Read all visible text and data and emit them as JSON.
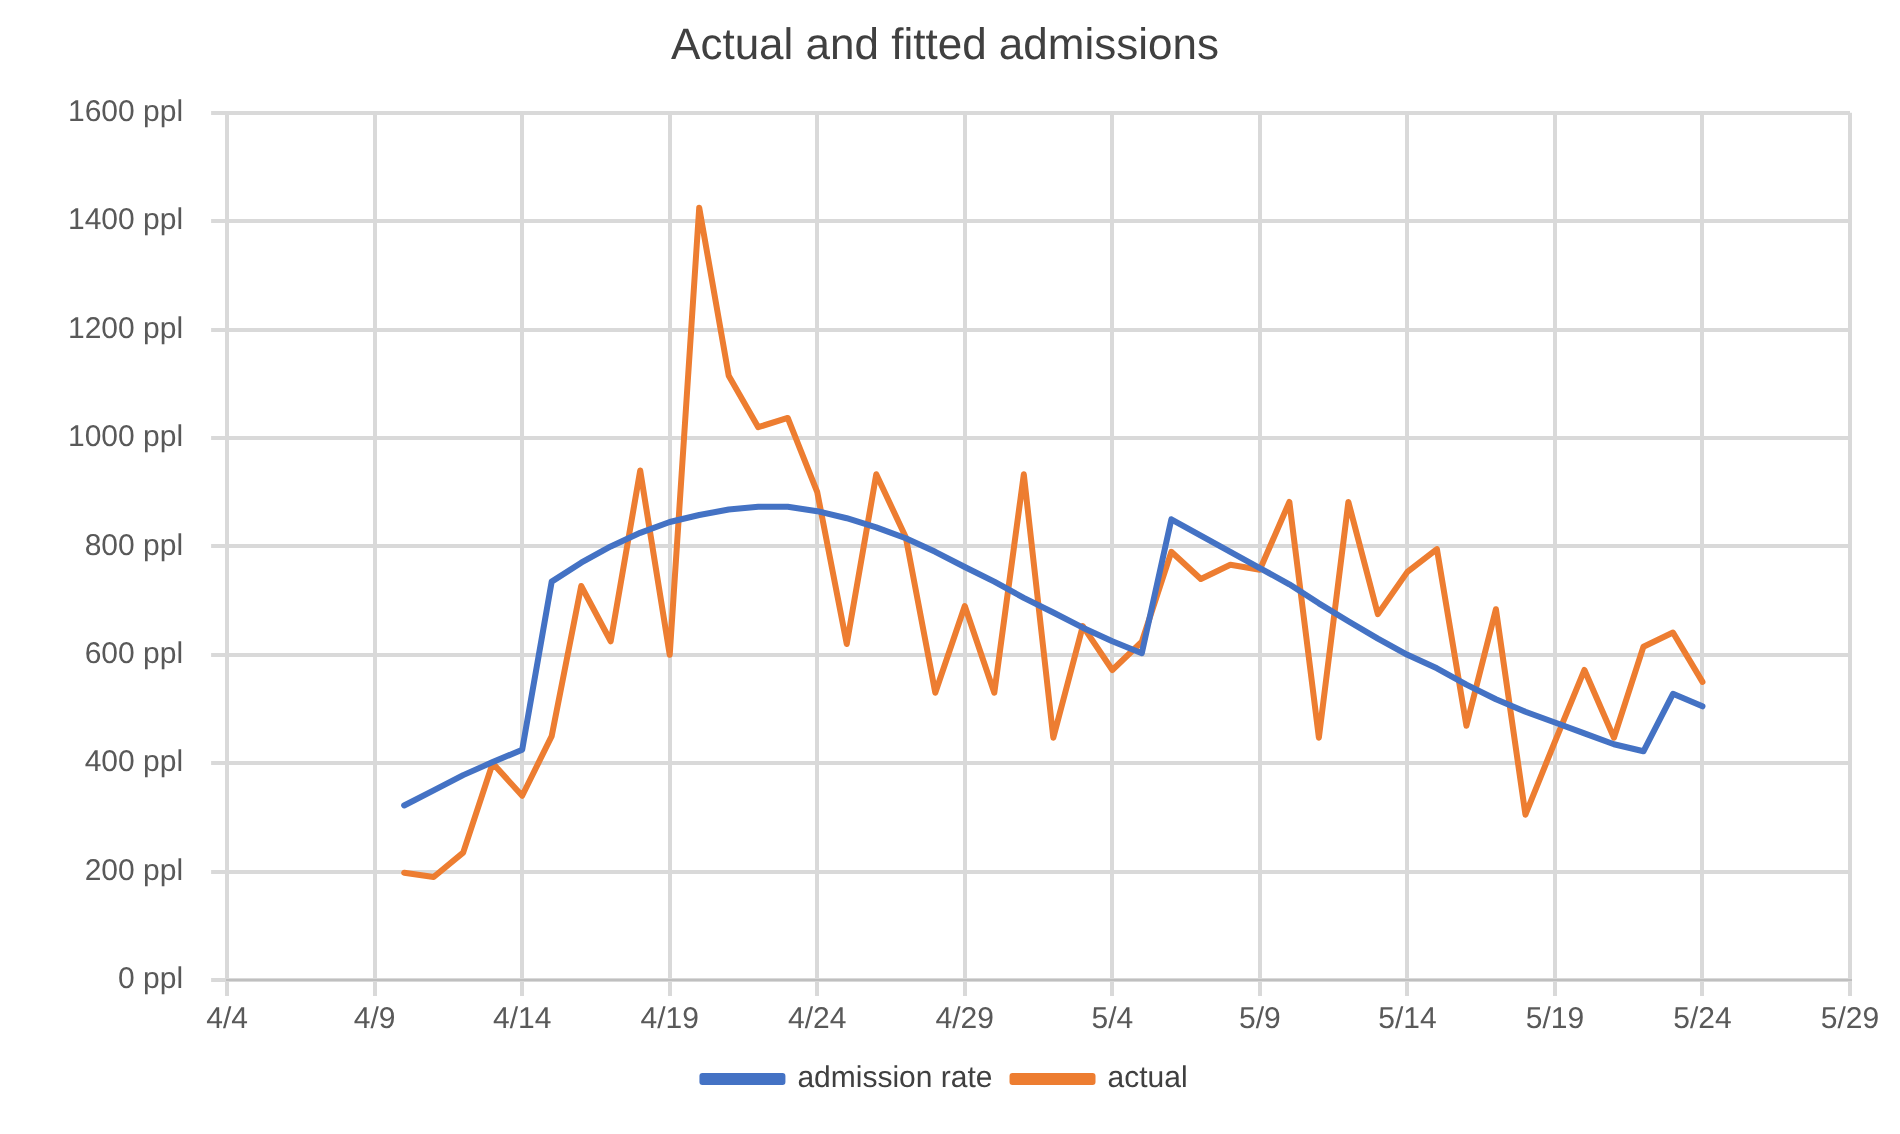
{
  "chart_data": {
    "type": "line",
    "title": "Actual and fitted admissions",
    "x": [
      "--04-10",
      "--04-11",
      "--04-12",
      "--04-13",
      "--04-14",
      "--04-15",
      "--04-16",
      "--04-17",
      "--04-18",
      "--04-19",
      "--04-20",
      "--04-21",
      "--04-22",
      "--04-23",
      "--04-24",
      "--04-25",
      "--04-26",
      "--04-27",
      "--04-28",
      "--04-29",
      "--04-30",
      "--05-01",
      "--05-02",
      "--05-03",
      "--05-04",
      "--05-05",
      "--05-06",
      "--05-07",
      "--05-08",
      "--05-09",
      "--05-10",
      "--05-11",
      "--05-12",
      "--05-13",
      "--05-14",
      "--05-15",
      "--05-16",
      "--05-17",
      "--05-18",
      "--05-19",
      "--05-20",
      "--05-21",
      "--05-22",
      "--05-23",
      "--05-24"
    ],
    "series": [
      {
        "name": "admission rate",
        "color": "#4472c4",
        "values": [
          322,
          350,
          378,
          402,
          425,
          735,
          770,
          800,
          825,
          845,
          858,
          868,
          873,
          873,
          865,
          852,
          835,
          815,
          790,
          762,
          735,
          705,
          678,
          650,
          625,
          603,
          850,
          820,
          790,
          760,
          730,
          695,
          662,
          630,
          600,
          575,
          545,
          518,
          495,
          475,
          455,
          435,
          422,
          528,
          505
        ]
      },
      {
        "name": "actual",
        "color": "#ed7d31",
        "values": [
          198,
          190,
          235,
          400,
          340,
          450,
          727,
          625,
          940,
          600,
          1425,
          1115,
          1020,
          1037,
          900,
          620,
          933,
          817,
          530,
          690,
          530,
          933,
          447,
          653,
          572,
          624,
          790,
          740,
          766,
          757,
          882,
          447,
          882,
          675,
          753,
          795,
          469,
          684,
          305,
          440,
          572,
          447,
          615,
          641,
          550
        ]
      }
    ],
    "xlim": [
      "--04-04",
      "--05-29"
    ],
    "xticks": [
      {
        "value": "--04-04",
        "label": "4/4"
      },
      {
        "value": "--04-09",
        "label": "4/9"
      },
      {
        "value": "--04-14",
        "label": "4/14"
      },
      {
        "value": "--04-19",
        "label": "4/19"
      },
      {
        "value": "--04-24",
        "label": "4/24"
      },
      {
        "value": "--04-29",
        "label": "4/29"
      },
      {
        "value": "--05-04",
        "label": "5/4"
      },
      {
        "value": "--05-09",
        "label": "5/9"
      },
      {
        "value": "--05-14",
        "label": "5/14"
      },
      {
        "value": "--05-19",
        "label": "5/19"
      },
      {
        "value": "--05-24",
        "label": "5/24"
      },
      {
        "value": "--05-29",
        "label": "5/29"
      }
    ],
    "ylim": [
      0,
      1600
    ],
    "yticks": [
      {
        "value": 0,
        "label": "0 ppl"
      },
      {
        "value": 200,
        "label": "200 ppl"
      },
      {
        "value": 400,
        "label": "400 ppl"
      },
      {
        "value": 600,
        "label": "600 ppl"
      },
      {
        "value": 800,
        "label": "800 ppl"
      },
      {
        "value": 1000,
        "label": "1000 ppl"
      },
      {
        "value": 1200,
        "label": "1200 ppl"
      },
      {
        "value": 1400,
        "label": "1400 ppl"
      },
      {
        "value": 1600,
        "label": "1600 ppl"
      }
    ],
    "grid": true,
    "legend": "bottom",
    "marker": "none",
    "line_style": "solid"
  }
}
